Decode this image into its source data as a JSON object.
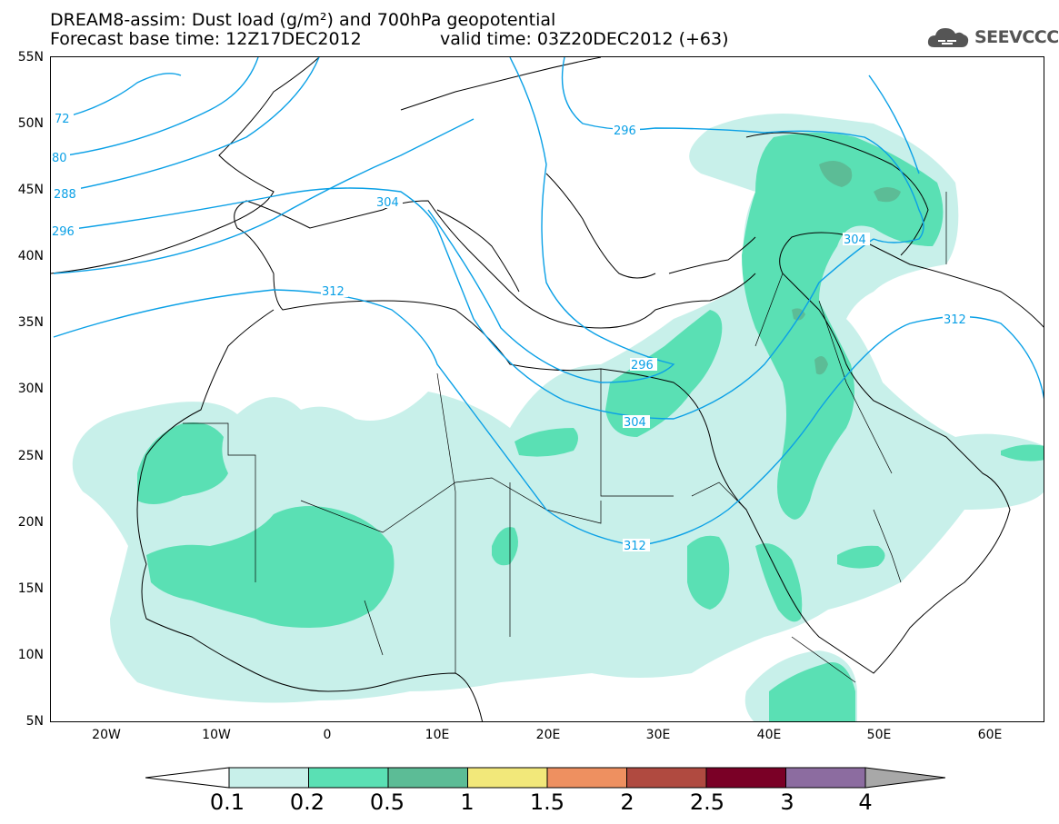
{
  "title": {
    "line1": "DREAM8-assim: Dust load (g/m²) and 700hPa geopotential",
    "line2": "Forecast base time: 12Z17DEC2012",
    "line2b": "valid time: 03Z20DEC2012 (+63)"
  },
  "logo": {
    "text": "SEEVCCC",
    "icon": "cloud-icon"
  },
  "axes": {
    "lat_labels": [
      "55N",
      "50N",
      "45N",
      "40N",
      "35N",
      "30N",
      "25N",
      "20N",
      "15N",
      "10N",
      "5N"
    ],
    "lon_labels": [
      "20W",
      "10W",
      "0",
      "10E",
      "20E",
      "30E",
      "40E",
      "50E",
      "60E"
    ],
    "lon_range": [
      -25,
      65
    ],
    "lat_range": [
      5,
      55
    ]
  },
  "contours": {
    "color": "#0aa0e6",
    "labels": [
      "72",
      "80",
      "288",
      "296",
      "304",
      "312",
      "296",
      "304",
      "312",
      "304",
      "312",
      "296"
    ]
  },
  "colorbar": {
    "labels": [
      "0.1",
      "0.2",
      "0.5",
      "1",
      "1.5",
      "2",
      "2.5",
      "3",
      "4"
    ],
    "colors": [
      "#c8f0ea",
      "#5ae0b4",
      "#5cbc96",
      "#f2e87a",
      "#ee9060",
      "#b04a40",
      "#7a0026",
      "#8c6ca0",
      "#a8a8a8"
    ]
  }
}
